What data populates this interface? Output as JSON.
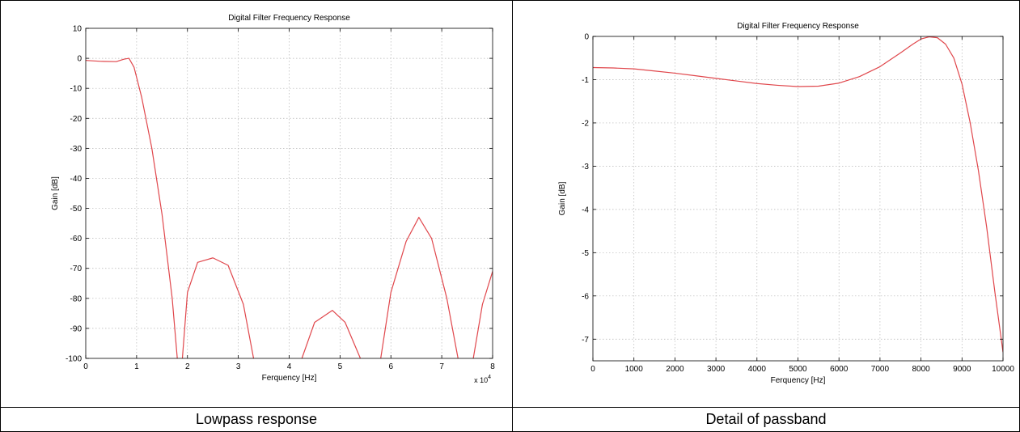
{
  "captions": [
    "Lowpass response",
    "Detail of passband"
  ],
  "chart_data": [
    {
      "type": "line",
      "title": "Digital Filter Frequency Response",
      "xlabel": "Ferquency [Hz]",
      "ylabel": "Gain [dB]",
      "x_multiplier_label": "x 10",
      "x_multiplier_exp": "4",
      "xlim": [
        0,
        8
      ],
      "ylim": [
        -100,
        10
      ],
      "xticks": [
        0,
        1,
        2,
        3,
        4,
        5,
        6,
        7,
        8
      ],
      "yticks": [
        10,
        0,
        -10,
        -20,
        -30,
        -40,
        -50,
        -60,
        -70,
        -80,
        -90,
        -100
      ],
      "grid": true,
      "line_color": "#e0474c",
      "segments": [
        {
          "x": [
            0,
            0.3,
            0.6,
            0.75,
            0.85,
            0.95,
            1.1,
            1.3,
            1.5,
            1.7,
            1.8
          ],
          "y": [
            -0.7,
            -1.0,
            -1.1,
            -0.3,
            0,
            -3,
            -13,
            -30,
            -52,
            -80,
            -100
          ]
        },
        {
          "x": [
            1.9,
            2.0,
            2.2,
            2.5,
            2.8,
            3.1,
            3.3
          ],
          "y": [
            -100,
            -78,
            -68,
            -66.5,
            -69,
            -82,
            -100
          ]
        },
        {
          "x": [
            4.25,
            4.5,
            4.85,
            5.1,
            5.4
          ],
          "y": [
            -100,
            -88,
            -84,
            -88,
            -100
          ]
        },
        {
          "x": [
            5.8,
            6.0,
            6.3,
            6.55,
            6.8,
            7.1,
            7.32
          ],
          "y": [
            -100,
            -78,
            -61,
            -53,
            -60,
            -80,
            -100
          ]
        },
        {
          "x": [
            7.62,
            7.8,
            8.0
          ],
          "y": [
            -100,
            -82,
            -71
          ]
        }
      ]
    },
    {
      "type": "line",
      "title": "Digital Filter Frequency Response",
      "xlabel": "Ferquency [Hz]",
      "ylabel": "Gain [dB]",
      "xlim": [
        0,
        10000
      ],
      "ylim": [
        -7.5,
        0
      ],
      "xticks": [
        0,
        1000,
        2000,
        3000,
        4000,
        5000,
        6000,
        7000,
        8000,
        9000,
        10000
      ],
      "yticks": [
        0,
        -1,
        -2,
        -3,
        -4,
        -5,
        -6,
        -7
      ],
      "grid": true,
      "line_color": "#e0474c",
      "segments": [
        {
          "x": [
            0,
            500,
            1000,
            1500,
            2000,
            2500,
            3000,
            3500,
            4000,
            4500,
            5000,
            5500,
            6000,
            6500,
            7000,
            7500,
            7800,
            8000,
            8200,
            8400,
            8600,
            8800,
            9000,
            9200,
            9400,
            9600,
            9800,
            10000
          ],
          "y": [
            -0.72,
            -0.73,
            -0.75,
            -0.8,
            -0.85,
            -0.91,
            -0.97,
            -1.03,
            -1.09,
            -1.13,
            -1.16,
            -1.15,
            -1.08,
            -0.93,
            -0.7,
            -0.38,
            -0.18,
            -0.06,
            -0.01,
            -0.03,
            -0.18,
            -0.5,
            -1.1,
            -2.0,
            -3.1,
            -4.4,
            -5.9,
            -7.3
          ]
        }
      ]
    }
  ]
}
